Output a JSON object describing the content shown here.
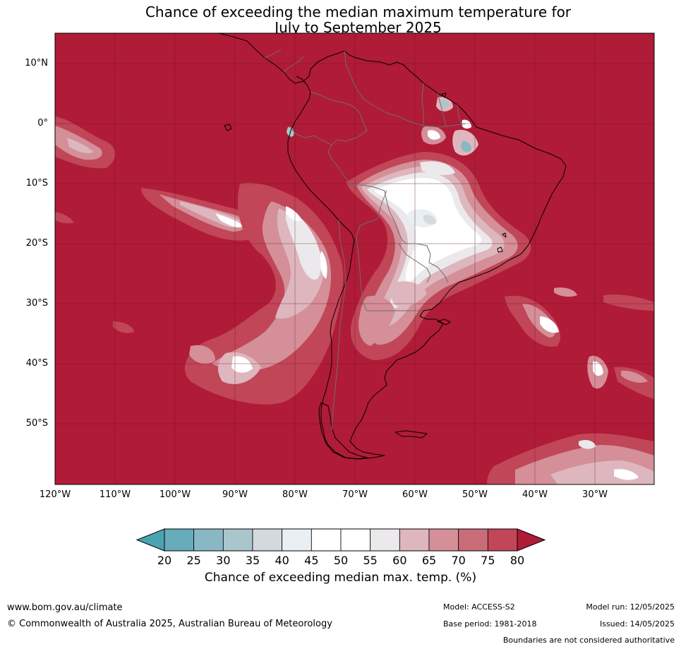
{
  "title": {
    "line1": "Chance of exceeding the median maximum temperature for",
    "line2": "July to September 2025"
  },
  "map": {
    "region": "South America",
    "background_color": "#b01b37",
    "latitude_labels": [
      "10°N",
      "0°",
      "10°S",
      "20°S",
      "30°S",
      "40°S",
      "50°S"
    ],
    "longitude_labels": [
      "120°W",
      "110°W",
      "100°W",
      "90°W",
      "80°W",
      "70°W",
      "60°W",
      "50°W",
      "40°W",
      "30°W"
    ]
  },
  "colorbar": {
    "ticks": [
      "20",
      "25",
      "30",
      "35",
      "40",
      "45",
      "50",
      "55",
      "60",
      "65",
      "70",
      "75",
      "80"
    ],
    "below_color": "#4aa3b0",
    "above_color": "#b01b37",
    "bins": [
      {
        "range": "20-25",
        "color": "#66acba"
      },
      {
        "range": "25-30",
        "color": "#89b8c5"
      },
      {
        "range": "30-35",
        "color": "#a9c6cc"
      },
      {
        "range": "35-40",
        "color": "#d3d9dc"
      },
      {
        "range": "40-45",
        "color": "#e9eff2"
      },
      {
        "range": "45-50",
        "color": "#ffffff"
      },
      {
        "range": "50-55",
        "color": "#ffffff"
      },
      {
        "range": "55-60",
        "color": "#ebe9eb"
      },
      {
        "range": "60-65",
        "color": "#deb6be"
      },
      {
        "range": "65-70",
        "color": "#d48f99"
      },
      {
        "range": "70-75",
        "color": "#c86c78"
      },
      {
        "range": "75-80",
        "color": "#c04658"
      }
    ],
    "label": "Chance of exceeding median max. temp. (%)"
  },
  "footer": {
    "url": "www.bom.gov.au/climate",
    "copyright": "© Commonwealth of Australia 2025, Australian Bureau of Meteorology",
    "model": "Model: ACCESS-S2",
    "base_period": "Base period: 1981-2018",
    "model_run": "Model run: 12/05/2025",
    "issued": "Issued: 14/05/2025",
    "disclaimer": "Boundaries are not considered authoritative"
  }
}
